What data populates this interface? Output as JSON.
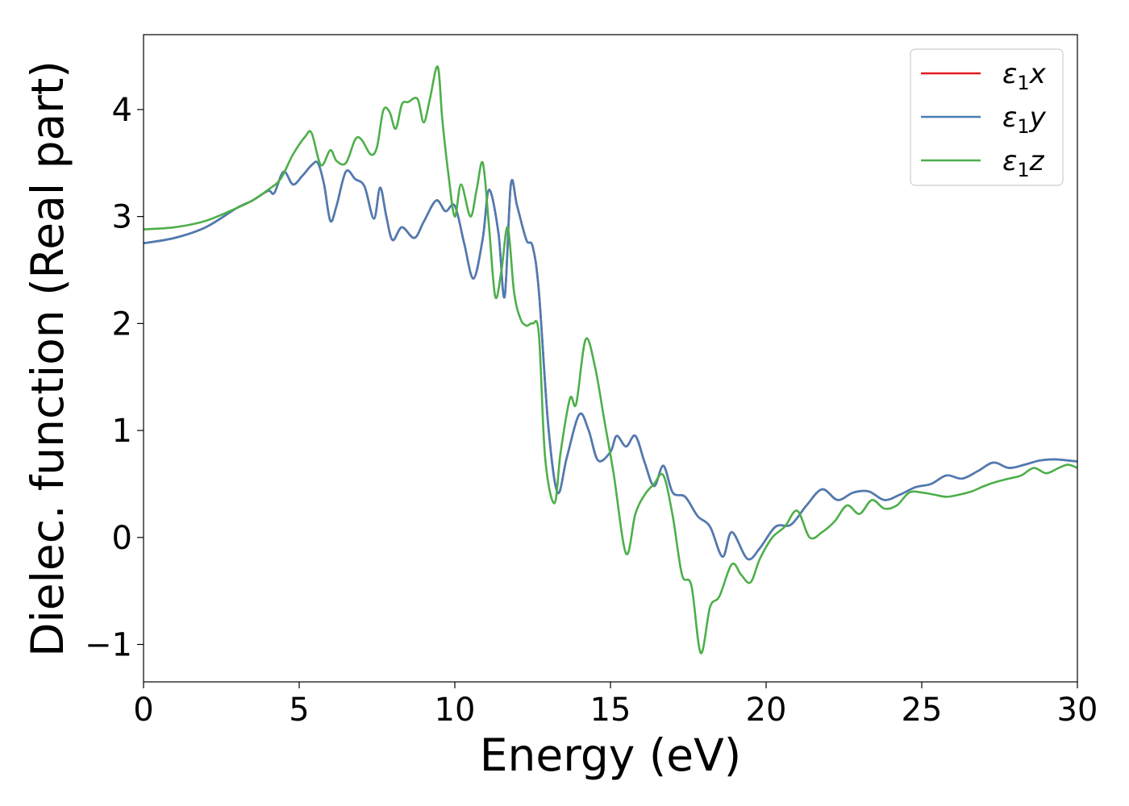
{
  "chart_data": {
    "type": "line",
    "title": "",
    "xlabel": "Energy (eV)",
    "ylabel": "Dielec. function (Real part)",
    "xlim": [
      0,
      30
    ],
    "ylim": [
      -1.35,
      4.7
    ],
    "xticks": [
      0,
      5,
      10,
      15,
      20,
      25,
      30
    ],
    "yticks": [
      -1,
      0,
      1,
      2,
      3,
      4
    ],
    "grid": false,
    "legend_position": "top-right",
    "series": [
      {
        "name": "ε1x",
        "legend_main": "ε",
        "legend_sub": "1",
        "legend_var": "x",
        "color": "#e41a1c",
        "x": [
          0,
          1,
          2,
          3,
          3.5,
          4,
          4.2,
          4.5,
          4.8,
          5.1,
          5.4,
          5.6,
          5.8,
          6.0,
          6.2,
          6.5,
          6.8,
          7.1,
          7.4,
          7.6,
          7.8,
          8.0,
          8.3,
          8.7,
          9.0,
          9.4,
          9.7,
          10.0,
          10.3,
          10.6,
          10.9,
          11.1,
          11.4,
          11.6,
          11.8,
          12.0,
          12.3,
          12.5,
          12.7,
          13.0,
          13.3,
          13.6,
          14.0,
          14.3,
          14.6,
          15.0,
          15.2,
          15.5,
          15.8,
          16.1,
          16.4,
          16.7,
          17.0,
          17.4,
          17.8,
          18.2,
          18.6,
          18.9,
          19.4,
          19.8,
          20.3,
          20.8,
          21.3,
          21.8,
          22.3,
          22.8,
          23.3,
          23.8,
          24.3,
          24.8,
          25.3,
          25.8,
          26.3,
          26.8,
          27.3,
          27.8,
          28.3,
          28.8,
          29.3,
          30.0
        ],
        "y": [
          2.75,
          2.8,
          2.9,
          3.08,
          3.15,
          3.24,
          3.22,
          3.42,
          3.3,
          3.38,
          3.48,
          3.5,
          3.3,
          2.96,
          3.1,
          3.42,
          3.35,
          3.28,
          2.98,
          3.27,
          3.0,
          2.78,
          2.9,
          2.8,
          2.95,
          3.15,
          3.05,
          3.1,
          2.75,
          2.42,
          2.8,
          3.25,
          2.85,
          2.25,
          3.3,
          3.1,
          2.78,
          2.72,
          2.3,
          1.05,
          0.42,
          0.75,
          1.15,
          1.0,
          0.72,
          0.8,
          0.95,
          0.85,
          0.95,
          0.7,
          0.48,
          0.67,
          0.42,
          0.38,
          0.2,
          0.1,
          -0.18,
          0.05,
          -0.2,
          -0.1,
          0.1,
          0.12,
          0.3,
          0.45,
          0.35,
          0.42,
          0.43,
          0.35,
          0.4,
          0.47,
          0.5,
          0.58,
          0.55,
          0.62,
          0.7,
          0.65,
          0.68,
          0.72,
          0.73,
          0.71
        ]
      },
      {
        "name": "ε1y",
        "legend_main": "ε",
        "legend_sub": "1",
        "legend_var": "y",
        "color": "#4a7db5",
        "x": [
          0,
          1,
          2,
          3,
          3.5,
          4,
          4.2,
          4.5,
          4.8,
          5.1,
          5.4,
          5.6,
          5.8,
          6.0,
          6.2,
          6.5,
          6.8,
          7.1,
          7.4,
          7.6,
          7.8,
          8.0,
          8.3,
          8.7,
          9.0,
          9.4,
          9.7,
          10.0,
          10.3,
          10.6,
          10.9,
          11.1,
          11.4,
          11.6,
          11.8,
          12.0,
          12.3,
          12.5,
          12.7,
          13.0,
          13.3,
          13.6,
          14.0,
          14.3,
          14.6,
          15.0,
          15.2,
          15.5,
          15.8,
          16.1,
          16.4,
          16.7,
          17.0,
          17.4,
          17.8,
          18.2,
          18.6,
          18.9,
          19.4,
          19.8,
          20.3,
          20.8,
          21.3,
          21.8,
          22.3,
          22.8,
          23.3,
          23.8,
          24.3,
          24.8,
          25.3,
          25.8,
          26.3,
          26.8,
          27.3,
          27.8,
          28.3,
          28.8,
          29.3,
          30.0
        ],
        "y": [
          2.75,
          2.8,
          2.9,
          3.08,
          3.15,
          3.24,
          3.22,
          3.42,
          3.3,
          3.38,
          3.48,
          3.5,
          3.3,
          2.96,
          3.1,
          3.42,
          3.35,
          3.28,
          2.98,
          3.27,
          3.0,
          2.78,
          2.9,
          2.8,
          2.95,
          3.15,
          3.05,
          3.1,
          2.75,
          2.42,
          2.8,
          3.25,
          2.85,
          2.25,
          3.3,
          3.1,
          2.78,
          2.72,
          2.3,
          1.05,
          0.42,
          0.75,
          1.15,
          1.0,
          0.72,
          0.8,
          0.95,
          0.85,
          0.95,
          0.7,
          0.48,
          0.67,
          0.42,
          0.38,
          0.2,
          0.1,
          -0.18,
          0.05,
          -0.2,
          -0.1,
          0.1,
          0.12,
          0.3,
          0.45,
          0.35,
          0.42,
          0.43,
          0.35,
          0.4,
          0.47,
          0.5,
          0.58,
          0.55,
          0.62,
          0.7,
          0.65,
          0.68,
          0.72,
          0.73,
          0.71
        ]
      },
      {
        "name": "ε1z",
        "legend_main": "ε",
        "legend_sub": "1",
        "legend_var": "z",
        "color": "#4daf4a",
        "x": [
          0,
          1,
          2,
          3,
          3.5,
          4,
          4.4,
          4.8,
          5.2,
          5.4,
          5.7,
          6.0,
          6.2,
          6.5,
          6.8,
          7.0,
          7.3,
          7.5,
          7.7,
          7.9,
          8.1,
          8.3,
          8.5,
          8.8,
          9.0,
          9.2,
          9.45,
          9.6,
          9.8,
          10.0,
          10.2,
          10.5,
          10.7,
          10.9,
          11.1,
          11.3,
          11.5,
          11.7,
          11.9,
          12.1,
          12.3,
          12.5,
          12.7,
          12.9,
          13.2,
          13.4,
          13.7,
          13.9,
          14.2,
          14.5,
          14.8,
          15.1,
          15.5,
          15.8,
          16.1,
          16.4,
          16.7,
          17.0,
          17.3,
          17.6,
          17.9,
          18.2,
          18.5,
          18.9,
          19.2,
          19.5,
          19.8,
          20.2,
          20.6,
          21.0,
          21.4,
          21.8,
          22.2,
          22.6,
          23.0,
          23.4,
          23.8,
          24.2,
          24.6,
          25.0,
          25.4,
          25.8,
          26.2,
          26.6,
          27.0,
          27.4,
          27.8,
          28.2,
          28.6,
          29.0,
          29.4,
          29.7,
          30.0
        ],
        "y": [
          2.88,
          2.9,
          2.96,
          3.08,
          3.15,
          3.25,
          3.35,
          3.58,
          3.75,
          3.78,
          3.48,
          3.62,
          3.52,
          3.5,
          3.72,
          3.72,
          3.58,
          3.65,
          3.99,
          3.98,
          3.82,
          4.05,
          4.07,
          4.1,
          3.88,
          4.1,
          4.4,
          3.9,
          3.38,
          3.0,
          3.3,
          3.0,
          3.25,
          3.5,
          2.9,
          2.25,
          2.5,
          2.9,
          2.3,
          2.05,
          1.98,
          2.0,
          1.9,
          0.75,
          0.32,
          0.8,
          1.3,
          1.25,
          1.85,
          1.6,
          1.1,
          0.6,
          -0.15,
          0.22,
          0.4,
          0.5,
          0.58,
          0.2,
          -0.35,
          -0.45,
          -1.08,
          -0.65,
          -0.55,
          -0.25,
          -0.35,
          -0.42,
          -0.2,
          0.0,
          0.1,
          0.25,
          0.0,
          0.05,
          0.15,
          0.3,
          0.22,
          0.35,
          0.27,
          0.3,
          0.42,
          0.42,
          0.4,
          0.38,
          0.4,
          0.43,
          0.48,
          0.52,
          0.55,
          0.58,
          0.65,
          0.6,
          0.65,
          0.68,
          0.65
        ]
      }
    ]
  }
}
